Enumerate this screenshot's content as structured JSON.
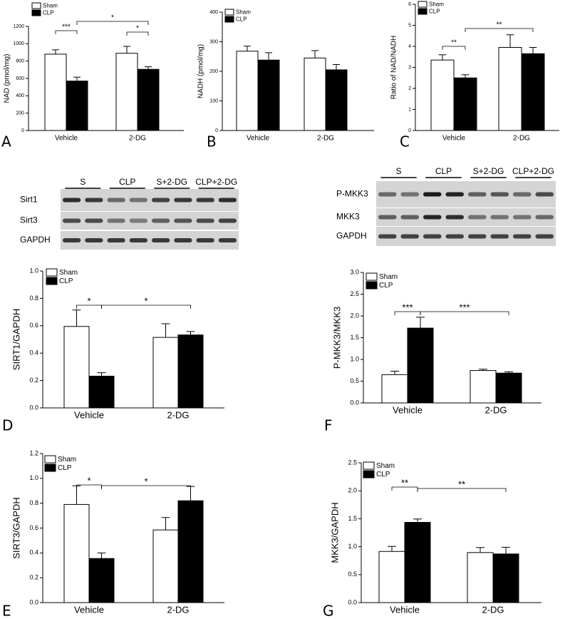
{
  "chart_data": [
    {
      "type": "bar",
      "panel": "A",
      "ylabel": "NAD (pmol/mg)",
      "categories": [
        "Vehicle",
        "2-DG"
      ],
      "series": [
        {
          "name": "Sham",
          "color": "#ffffff",
          "values": [
            880,
            890
          ],
          "errors": [
            50,
            80
          ]
        },
        {
          "name": "CLP",
          "color": "#000000",
          "values": [
            570,
            705
          ],
          "errors": [
            45,
            30
          ]
        }
      ],
      "ylim": [
        0,
        1200
      ],
      "yticks": [
        0,
        200,
        400,
        600,
        800,
        1000,
        1200
      ],
      "annotations": [
        "***",
        "*",
        "*"
      ]
    },
    {
      "type": "bar",
      "panel": "B",
      "ylabel": "NADH (pmol/mg)",
      "categories": [
        "Vehicle",
        "2-DG"
      ],
      "series": [
        {
          "name": "Sham",
          "color": "#ffffff",
          "values": [
            268,
            245
          ],
          "errors": [
            17,
            25
          ]
        },
        {
          "name": "CLP",
          "color": "#000000",
          "values": [
            238,
            205
          ],
          "errors": [
            25,
            18
          ]
        }
      ],
      "ylim": [
        0,
        400
      ],
      "yticks": [
        0,
        100,
        200,
        300,
        400
      ],
      "annotations": []
    },
    {
      "type": "bar",
      "panel": "C",
      "ylabel": "Ratio of NAD/NADH",
      "categories": [
        "Vehicle",
        "2-DG"
      ],
      "series": [
        {
          "name": "Sham",
          "color": "#ffffff",
          "values": [
            3.35,
            3.95
          ],
          "errors": [
            0.25,
            0.6
          ]
        },
        {
          "name": "CLP",
          "color": "#000000",
          "values": [
            2.5,
            3.65
          ],
          "errors": [
            0.15,
            0.3
          ]
        }
      ],
      "ylim": [
        0,
        6
      ],
      "yticks": [
        0,
        1,
        2,
        3,
        4,
        5,
        6
      ],
      "annotations": [
        "**",
        "**"
      ]
    },
    {
      "type": "bar",
      "panel": "D",
      "ylabel": "SIRT1/GAPDH",
      "categories": [
        "Vehicle",
        "2-DG"
      ],
      "series": [
        {
          "name": "Sham",
          "color": "#ffffff",
          "values": [
            0.595,
            0.515
          ],
          "errors": [
            0.12,
            0.1
          ]
        },
        {
          "name": "CLP",
          "color": "#000000",
          "values": [
            0.232,
            0.533
          ],
          "errors": [
            0.025,
            0.025
          ]
        }
      ],
      "ylim": [
        0,
        1.0
      ],
      "yticks": [
        {
          "value": 0,
          "label": "0.0"
        },
        0.2,
        0.4,
        0.6,
        0.8,
        {
          "value": 1,
          "label": "1.0"
        }
      ],
      "annotations": [
        "*",
        "*"
      ]
    },
    {
      "type": "bar",
      "panel": "F",
      "ylabel": "P-MKK3/MKK3",
      "categories": [
        "Vehicle",
        "2-DG"
      ],
      "series": [
        {
          "name": "Sham",
          "color": "#ffffff",
          "values": [
            0.65,
            0.745
          ],
          "errors": [
            0.08,
            0.03
          ]
        },
        {
          "name": "CLP",
          "color": "#000000",
          "values": [
            1.72,
            0.685
          ],
          "errors": [
            0.25,
            0.03
          ]
        }
      ],
      "ylim": [
        0,
        3.0
      ],
      "yticks": [
        {
          "value": 0,
          "label": "0.0"
        },
        0.5,
        {
          "value": 1,
          "label": "1.0"
        },
        1.5,
        {
          "value": 2,
          "label": "2.0"
        },
        2.5,
        {
          "value": 3,
          "label": "3.0"
        }
      ],
      "annotations": [
        "***",
        "***"
      ]
    },
    {
      "type": "bar",
      "panel": "E",
      "ylabel": "SIRT3/GAPDH",
      "categories": [
        "Vehicle",
        "2-DG"
      ],
      "series": [
        {
          "name": "Sham",
          "color": "#ffffff",
          "values": [
            0.79,
            0.585
          ],
          "errors": [
            0.15,
            0.1
          ]
        },
        {
          "name": "CLP",
          "color": "#000000",
          "values": [
            0.355,
            0.82
          ],
          "errors": [
            0.045,
            0.115
          ]
        }
      ],
      "ylim": [
        0,
        1.2
      ],
      "yticks": [
        {
          "value": 0,
          "label": "0.0"
        },
        0.2,
        0.4,
        0.6,
        0.8,
        {
          "value": 1,
          "label": "1.0"
        },
        1.2
      ],
      "annotations": [
        "*",
        "*"
      ]
    },
    {
      "type": "bar",
      "panel": "G",
      "ylabel": "MKK3/GAPDH",
      "categories": [
        "Vehicle",
        "2-DG"
      ],
      "series": [
        {
          "name": "Sham",
          "color": "#ffffff",
          "values": [
            0.915,
            0.895
          ],
          "errors": [
            0.09,
            0.09
          ]
        },
        {
          "name": "CLP",
          "color": "#000000",
          "values": [
            1.435,
            0.87
          ],
          "errors": [
            0.06,
            0.12
          ]
        }
      ],
      "ylim": [
        0,
        2.5
      ],
      "yticks": [
        {
          "value": 0,
          "label": "0.0"
        },
        0.5,
        {
          "value": 1,
          "label": "1.0"
        },
        1.5,
        {
          "value": 2,
          "label": "2.0"
        },
        2.5
      ],
      "annotations": [
        "**",
        "**"
      ]
    }
  ],
  "blots": [
    {
      "lanes": [
        "S",
        "CLP",
        "S+2-DG",
        "CLP+2-DG"
      ],
      "rows": [
        "Sirt1",
        "Sirt3",
        "GAPDH"
      ]
    },
    {
      "lanes": [
        "S",
        "CLP",
        "S+2-DG",
        "CLP+2-DG"
      ],
      "rows": [
        "P-MKK3",
        "MKK3",
        "GAPDH"
      ]
    }
  ]
}
